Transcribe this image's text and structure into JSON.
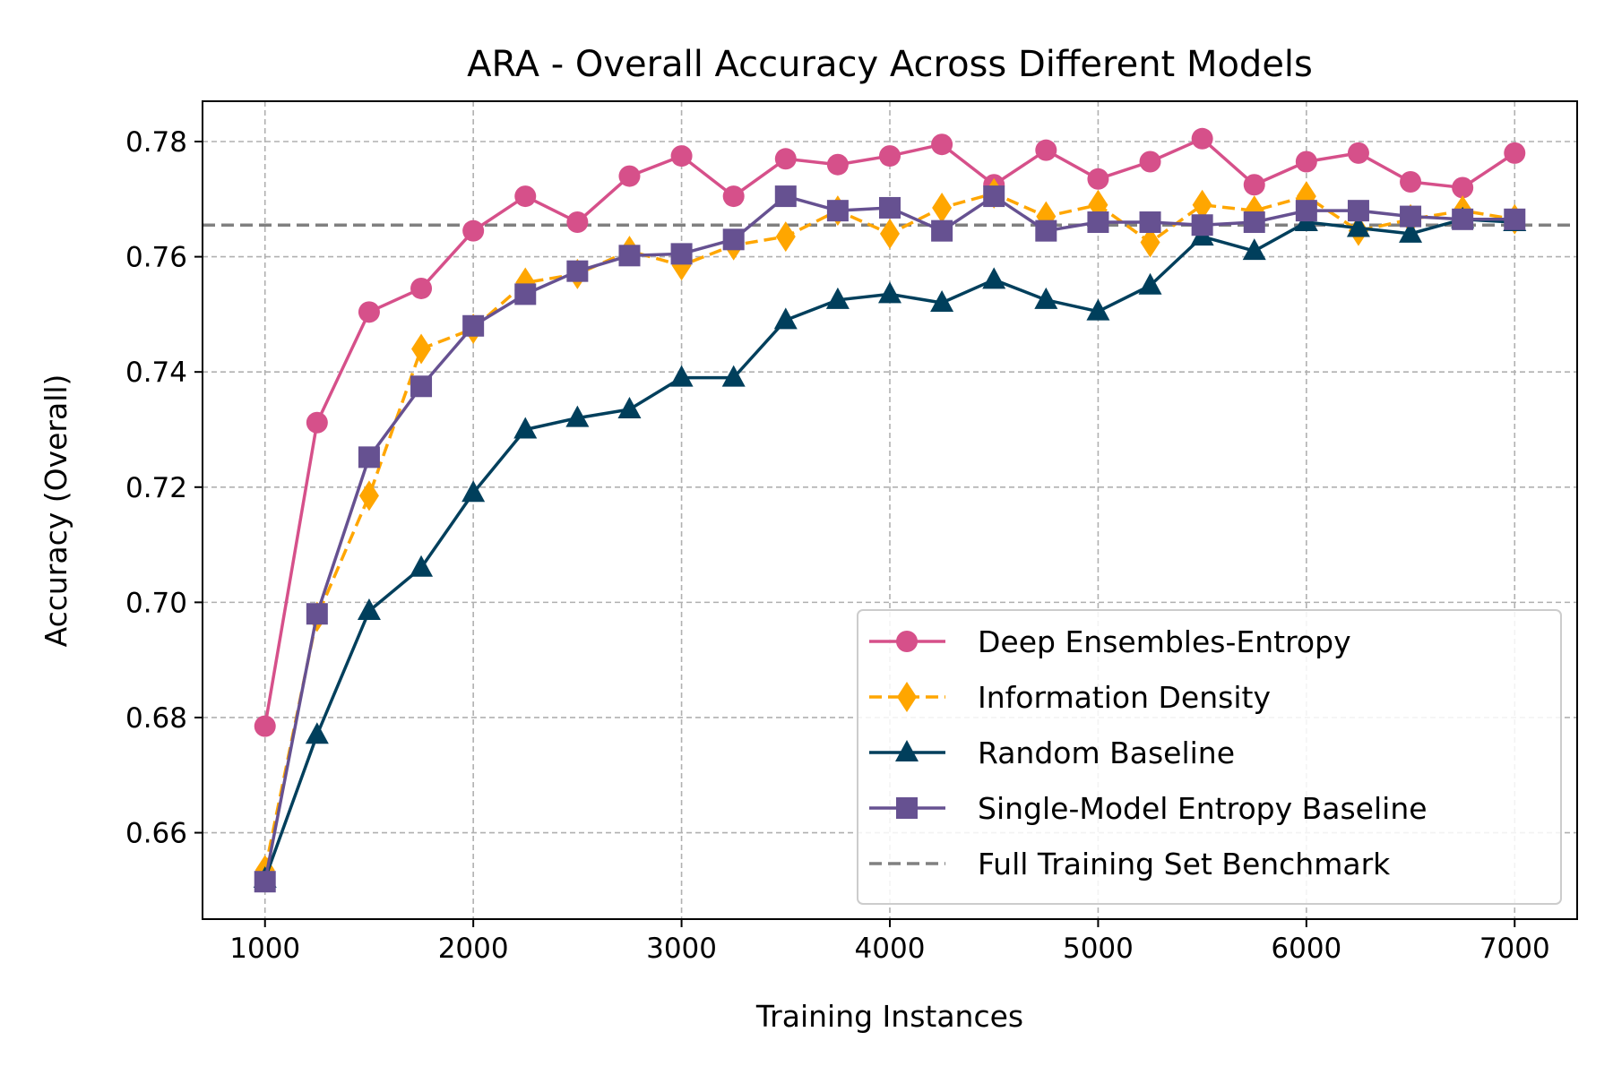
{
  "chart_data": {
    "type": "line",
    "title": "ARA - Overall Accuracy Across Different Models",
    "xlabel": "Training Instances",
    "ylabel": "Accuracy (Overall)",
    "xlim": [
      700,
      7300
    ],
    "ylim": [
      0.645,
      0.787
    ],
    "xticks": [
      1000,
      2000,
      3000,
      4000,
      5000,
      6000,
      7000
    ],
    "yticks": [
      0.66,
      0.68,
      0.7,
      0.72,
      0.74,
      0.76,
      0.78
    ],
    "ytick_labels": [
      "0.66",
      "0.68",
      "0.70",
      "0.72",
      "0.74",
      "0.76",
      "0.78"
    ],
    "grid": true,
    "legend_position": "lower-right",
    "x": [
      1000,
      1250,
      1500,
      1750,
      2000,
      2250,
      2500,
      2750,
      3000,
      3250,
      3500,
      3750,
      4000,
      4250,
      4500,
      4750,
      5000,
      5250,
      5500,
      5750,
      6000,
      6250,
      6500,
      6750,
      7000
    ],
    "series": [
      {
        "name": "Deep Ensembles-Entropy",
        "color": "#d6508a",
        "marker": "circle",
        "dash": "solid",
        "values": [
          0.6785,
          0.7312,
          0.7504,
          0.7545,
          0.7645,
          0.7705,
          0.766,
          0.774,
          0.7775,
          0.7705,
          0.777,
          0.776,
          0.7775,
          0.7795,
          0.7725,
          0.7785,
          0.7735,
          0.7765,
          0.7805,
          0.7725,
          0.7765,
          0.778,
          0.773,
          0.772,
          0.778
        ]
      },
      {
        "name": "Information Density",
        "color": "#ffa600",
        "marker": "diamond",
        "dash": "dashed",
        "values": [
          0.6535,
          0.6975,
          0.7185,
          0.744,
          0.7475,
          0.7555,
          0.757,
          0.761,
          0.7585,
          0.762,
          0.7635,
          0.768,
          0.764,
          0.7685,
          0.771,
          0.767,
          0.769,
          0.7625,
          0.769,
          0.768,
          0.7705,
          0.7645,
          0.7665,
          0.768,
          0.7665
        ]
      },
      {
        "name": "Random Baseline",
        "color": "#003f5c",
        "marker": "triangle",
        "dash": "solid",
        "values": [
          0.652,
          0.677,
          0.6985,
          0.706,
          0.719,
          0.73,
          0.732,
          0.7335,
          0.739,
          0.739,
          0.749,
          0.7525,
          0.7535,
          0.752,
          0.756,
          0.7525,
          0.7505,
          0.755,
          0.7635,
          0.761,
          0.766,
          0.765,
          0.764,
          0.7665,
          0.766
        ]
      },
      {
        "name": "Single-Model Entropy Baseline",
        "color": "#665191",
        "marker": "square",
        "dash": "solid",
        "values": [
          0.6515,
          0.698,
          0.7252,
          0.7375,
          0.748,
          0.7535,
          0.7575,
          0.7602,
          0.7605,
          0.763,
          0.7705,
          0.768,
          0.7685,
          0.7645,
          0.7705,
          0.7645,
          0.766,
          0.766,
          0.7655,
          0.766,
          0.768,
          0.768,
          0.767,
          0.7665,
          0.7665
        ]
      }
    ],
    "benchmark": {
      "name": "Full Training Set Benchmark",
      "color": "#808080",
      "value": 0.7655
    }
  }
}
